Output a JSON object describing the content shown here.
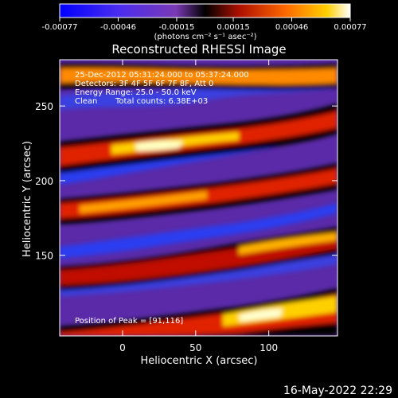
{
  "colorbar": {
    "tick_labels": [
      "-0.00077",
      "-0.00046",
      "-0.00015",
      "0.00015",
      "0.00046",
      "0.00077"
    ],
    "unit_label": "(photons cm⁻² s⁻¹ asec⁻²)",
    "range": [
      -0.00077,
      0.00077
    ]
  },
  "annotations": {
    "time_range": "25-Dec-2012 05:31:24.000 to 05:37:24.000",
    "detectors": "Detectors: 3F 4F 5F 6F 7F 8F, Att 0",
    "energy": "Energy Range: 25.0 - 50.0 keV",
    "method": "Clean",
    "total_counts": "Total counts: 6.38E+03",
    "peak": "Position of Peak = [91,116]"
  },
  "footer": {
    "timestamp": "16-May-2022 22:29"
  },
  "colors": {
    "background": "#000000",
    "low": "#0000ff",
    "mid_low": "#6a2bb0",
    "zero": "#000000",
    "mid_high": "#d00000",
    "high": "#ffe000",
    "max": "#ffffff"
  },
  "chart_data": {
    "type": "heatmap",
    "title": "Reconstructed RHESSI Image",
    "xlabel": "Heliocentric X (arcsec)",
    "ylabel": "Heliocentric Y (arcsec)",
    "xlim": [
      -43,
      147
    ],
    "ylim": [
      96,
      281
    ],
    "x_ticks": [
      0,
      50,
      100
    ],
    "y_ticks": [
      150,
      200,
      250
    ],
    "grid": false,
    "bands": [
      {
        "x0": -43,
        "y0": 232,
        "x1": 147,
        "y1": 266,
        "intensity": 0.3
      },
      {
        "x0": -43,
        "y0": 222,
        "x1": 147,
        "y1": 247,
        "intensity": 0.55
      },
      {
        "x0": -43,
        "y0": 192,
        "x1": 147,
        "y1": 229,
        "intensity": 0.5
      },
      {
        "x0": -43,
        "y0": 151,
        "x1": 147,
        "y1": 186,
        "intensity": 0.5
      },
      {
        "x0": -43,
        "y0": 103,
        "x1": 147,
        "y1": 128,
        "intensity": 0.95
      }
    ],
    "peak": [
      91,
      116
    ]
  }
}
